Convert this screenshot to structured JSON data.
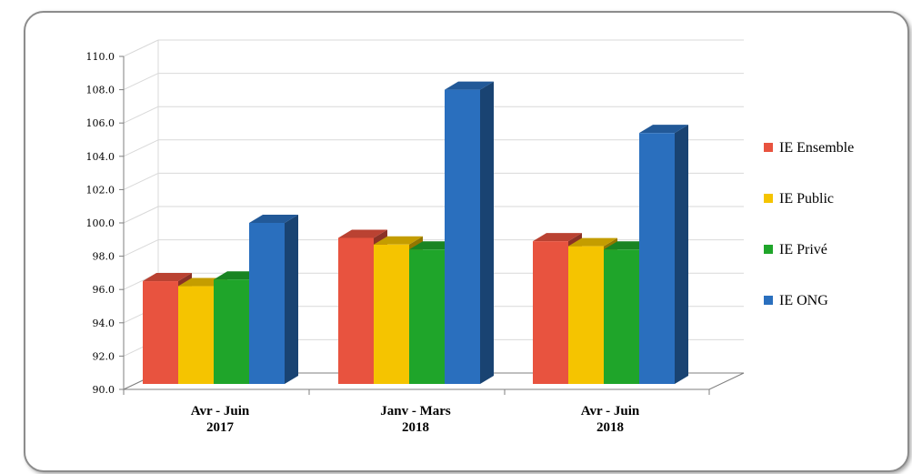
{
  "chart_data": {
    "type": "bar",
    "categories": [
      [
        "Avr - Juin",
        "2017"
      ],
      [
        "Janv - Mars",
        "2018"
      ],
      [
        "Avr - Juin",
        "2018"
      ]
    ],
    "series": [
      {
        "name": "IE Ensemble",
        "color": "#e8533f",
        "values": [
          96.5,
          99.1,
          98.9
        ]
      },
      {
        "name": "IE Public",
        "color": "#f5c400",
        "values": [
          96.2,
          98.7,
          98.6
        ]
      },
      {
        "name": "IE Privé",
        "color": "#1fa52a",
        "values": [
          96.6,
          98.4,
          98.4
        ]
      },
      {
        "name": "IE ONG",
        "color": "#2a6fbe",
        "values": [
          100.0,
          108.0,
          105.4
        ]
      }
    ],
    "ylim": [
      90,
      110
    ],
    "yticks": [
      "90.0",
      "92.0",
      "94.0",
      "96.0",
      "98.0",
      "100.0",
      "102.0",
      "104.0",
      "106.0",
      "108.0",
      "110.0"
    ],
    "grid": true,
    "legend_position": "right",
    "title": "",
    "xlabel": "",
    "ylabel": ""
  }
}
